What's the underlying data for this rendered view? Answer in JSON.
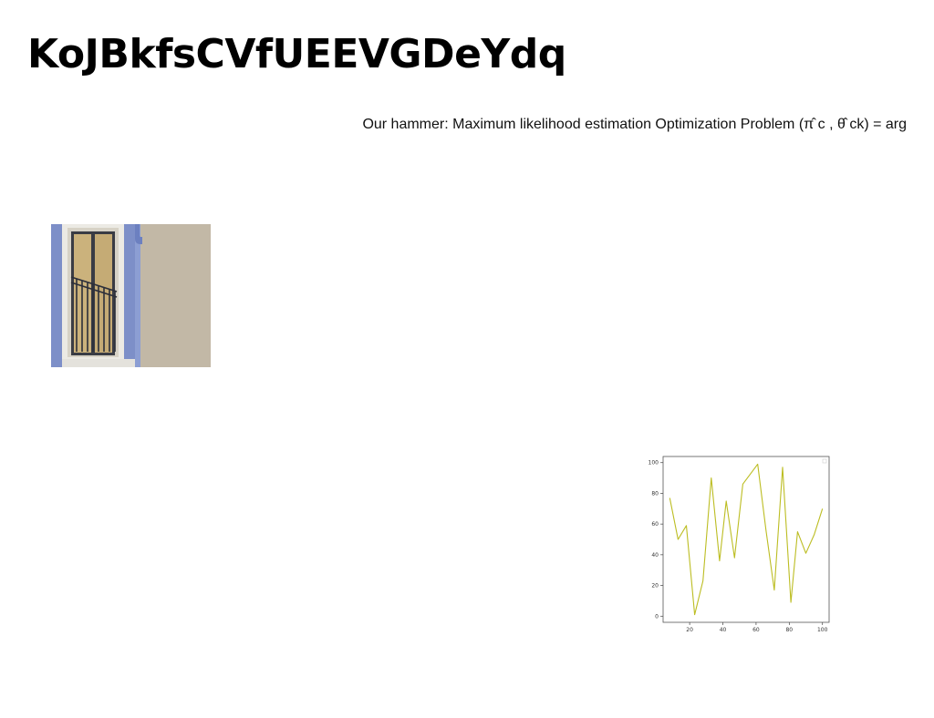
{
  "page": {
    "title": "KoJBkfsCVfUEEVGDeYdq",
    "subtitle": "Our hammer: Maximum likelihood estimation Optimization Problem (π̂ c , θ̂ ck) = arg"
  },
  "photo": {
    "icon": "building-window-balcony-photo",
    "colors": {
      "wall": "#c2b8a6",
      "facade": "#7d8fc8",
      "frame": "#eceae4",
      "glass": "#cbb27c",
      "rail": "#2c2f3a"
    }
  },
  "chart_data": {
    "type": "line",
    "x": [
      8,
      13,
      18,
      23,
      28,
      33,
      38,
      42,
      47,
      52,
      61,
      66,
      71,
      76,
      81,
      85,
      90,
      95,
      100
    ],
    "series": [
      {
        "values": [
          77,
          50,
          59,
          1,
          23,
          90,
          36,
          75,
          38,
          86,
          99,
          56,
          17,
          97,
          9,
          55,
          41,
          53,
          70
        ],
        "color": "#bcbd22"
      }
    ],
    "title": "",
    "xlabel": "",
    "ylabel": "",
    "xlim": [
      4,
      104
    ],
    "ylim": [
      -4,
      104
    ],
    "xticks": [
      20,
      40,
      60,
      80,
      100
    ],
    "yticks": [
      0,
      20,
      40,
      60,
      80,
      100
    ],
    "grid": false,
    "legend": "top-right"
  }
}
